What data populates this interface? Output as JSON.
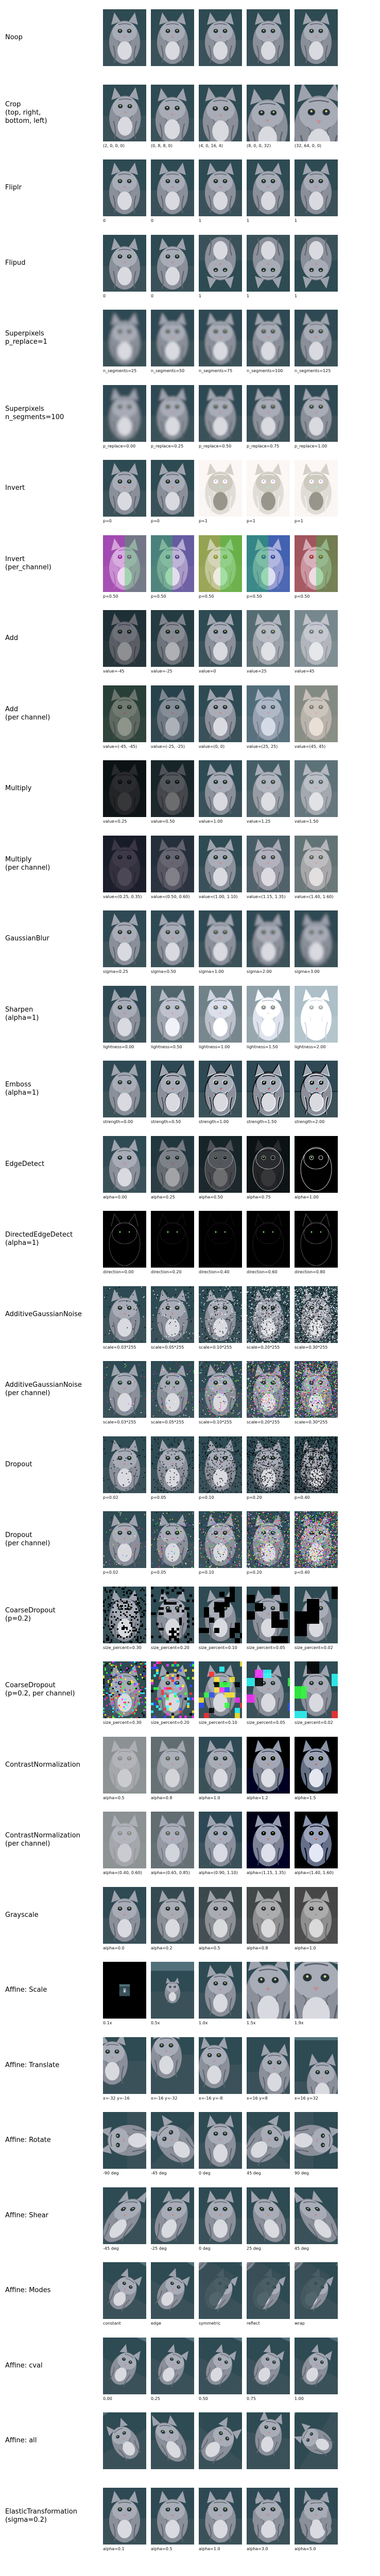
{
  "rows": [
    {
      "label": "Noop",
      "variant": "plain",
      "captions": [
        "",
        "",
        "",
        "",
        ""
      ]
    },
    {
      "label": "Crop\n(top, right,\nbottom, left)",
      "variant": "crop",
      "captions": [
        "(2, 0, 0, 0)",
        "(0, 8, 8, 0)",
        "(4, 0, 16, 4)",
        "(8, 0, 0, 32)",
        "(32, 64, 0, 0)"
      ]
    },
    {
      "label": "Fliplr",
      "variant": "fliplr",
      "captions": [
        "0",
        "0",
        "1",
        "1",
        "1"
      ]
    },
    {
      "label": "Flipud",
      "variant": "flipud",
      "captions": [
        "0",
        "0",
        "1",
        "1",
        "1"
      ]
    },
    {
      "label": "Superpixels\np_replace=1",
      "variant": "superpixel",
      "captions": [
        "n_segments=25",
        "n_segments=50",
        "n_segments=75",
        "n_segments=100",
        "n_segments=125"
      ]
    },
    {
      "label": "Superpixels\nn_segments=100",
      "variant": "superpixel",
      "captions": [
        "p_replace=0.00",
        "p_replace=0.25",
        "p_replace=0.50",
        "p_replace=0.75",
        "p_replace=1.00"
      ]
    },
    {
      "label": "Invert",
      "variant": "invert",
      "captions": [
        "p=0",
        "p=0",
        "p=1",
        "p=1",
        "p=1"
      ]
    },
    {
      "label": "Invert\n(per_channel)",
      "variant": "invertpc",
      "captions": [
        "p=0.50",
        "p=0.50",
        "p=0.50",
        "p=0.50",
        "p=0.50"
      ]
    },
    {
      "label": "Add",
      "variant": "add",
      "captions": [
        "value=-45",
        "value=-25",
        "value=0",
        "value=25",
        "value=45"
      ]
    },
    {
      "label": "Add\n(per channel)",
      "variant": "addpc",
      "captions": [
        "value=(-45, -45)",
        "value=(-25, -25)",
        "value=(0, 0)",
        "value=(25, 25)",
        "value=(45, 45)"
      ]
    },
    {
      "label": "Multiply",
      "variant": "multiply",
      "captions": [
        "value=0.25",
        "value=0.50",
        "value=1.00",
        "value=1.25",
        "value=1.50"
      ]
    },
    {
      "label": "Multiply\n(per channel)",
      "variant": "multiplypc",
      "captions": [
        "value=(0.25, 0.35)",
        "value=(0.50, 0.60)",
        "value=(1.00, 1.10)",
        "value=(1.15, 1.35)",
        "value=(1.40, 1.60)"
      ]
    },
    {
      "label": "GaussianBlur",
      "variant": "blur",
      "captions": [
        "sigma=0.25",
        "sigma=0.50",
        "sigma=1.00",
        "sigma=2.00",
        "sigma=3.00"
      ]
    },
    {
      "label": "Sharpen\n(alpha=1)",
      "variant": "sharpen",
      "captions": [
        "lightness=0.00",
        "lightness=0.50",
        "lightness=1.00",
        "lightness=1.50",
        "lightness=2.00"
      ]
    },
    {
      "label": "Emboss\n(alpha=1)",
      "variant": "emboss",
      "captions": [
        "strength=0.00",
        "strength=0.50",
        "strength=1.00",
        "strength=1.50",
        "strength=2.00"
      ]
    },
    {
      "label": "EdgeDetect",
      "variant": "edge",
      "captions": [
        "alpha=0.00",
        "alpha=0.25",
        "alpha=0.50",
        "alpha=0.75",
        "alpha=1.00"
      ]
    },
    {
      "label": "DirectedEdgeDetect\n(alpha=1)",
      "variant": "diredge",
      "captions": [
        "direction=0.00",
        "direction=0.20",
        "direction=0.40",
        "direction=0.60",
        "direction=0.80"
      ]
    },
    {
      "label": "AdditiveGaussianNoise",
      "variant": "noise",
      "captions": [
        "scale=0.03*255",
        "scale=0.05*255",
        "scale=0.10*255",
        "scale=0.20*255",
        "scale=0.30*255"
      ]
    },
    {
      "label": "AdditiveGaussianNoise\n(per channel)",
      "variant": "noisepc",
      "captions": [
        "scale=0.03*255",
        "scale=0.05*255",
        "scale=0.10*255",
        "scale=0.20*255",
        "scale=0.30*255"
      ]
    },
    {
      "label": "Dropout",
      "variant": "dropout",
      "captions": [
        "p=0.02",
        "p=0.05",
        "p=0.10",
        "p=0.20",
        "p=0.40"
      ]
    },
    {
      "label": "Dropout\n(per channel)",
      "variant": "dropoutpc",
      "captions": [
        "p=0.02",
        "p=0.05",
        "p=0.10",
        "p=0.20",
        "p=0.40"
      ]
    },
    {
      "label": "CoarseDropout\n(p=0.2)",
      "variant": "coarse",
      "captions": [
        "size_percent=0.30",
        "size_percent=0.20",
        "size_percent=0.10",
        "size_percent=0.05",
        "size_percent=0.02"
      ]
    },
    {
      "label": "CoarseDropout\n(p=0.2, per channel)",
      "variant": "coarsepc",
      "captions": [
        "size_percent=0.30",
        "size_percent=0.20",
        "size_percent=0.10",
        "size_percent=0.05",
        "size_percent=0.02"
      ]
    },
    {
      "label": "ContrastNormalization",
      "variant": "contrast",
      "captions": [
        "alpha=0.5",
        "alpha=0.8",
        "alpha=1.0",
        "alpha=1.2",
        "alpha=1.5"
      ]
    },
    {
      "label": "ContrastNormalization\n(per channel)",
      "variant": "contrastpc",
      "captions": [
        "alpha=(0.40, 0.60)",
        "alpha=(0.65, 0.85)",
        "alpha=(0.90, 1.10)",
        "alpha=(1.15, 1.35)",
        "alpha=(1.40, 1.60)"
      ]
    },
    {
      "label": "Grayscale",
      "variant": "grayscale",
      "captions": [
        "alpha=0.0",
        "alpha=0.2",
        "alpha=0.5",
        "alpha=0.8",
        "alpha=1.0"
      ]
    },
    {
      "label": "Affine: Scale",
      "variant": "scale",
      "captions": [
        "0.1x",
        "0.5x",
        "1.0x",
        "1.5x",
        "1.9x"
      ]
    },
    {
      "label": "Affine: Translate",
      "variant": "translate",
      "captions": [
        "x=-32 y=-16",
        "x=-16 y=-32",
        "x=-16 y=-8",
        "x=16 y=8",
        "x=16 y=32"
      ]
    },
    {
      "label": "Affine: Rotate",
      "variant": "rotate",
      "captions": [
        "-90 deg",
        "-45 deg",
        "0 deg",
        "45 deg",
        "90 deg"
      ]
    },
    {
      "label": "Affine: Shear",
      "variant": "shear",
      "captions": [
        "-45 deg",
        "-25 deg",
        "0 deg",
        "25 deg",
        "45 deg"
      ]
    },
    {
      "label": "Affine: Modes",
      "variant": "modes",
      "captions": [
        "constant",
        "edge",
        "symmetric",
        "reflect",
        "wrap"
      ]
    },
    {
      "label": "Affine: cval",
      "variant": "cval",
      "captions": [
        "0.00",
        "0.25",
        "0.50",
        "0.75",
        "1.00"
      ]
    },
    {
      "label": "Affine: all",
      "variant": "all",
      "captions": [
        "",
        "",
        "",
        "",
        ""
      ]
    },
    {
      "label": "ElasticTransformation\n(sigma=0.2)",
      "variant": "elastic",
      "captions": [
        "alpha=0.1",
        "alpha=0.5",
        "alpha=1.0",
        "alpha=3.0",
        "alpha=5.0"
      ]
    }
  ]
}
